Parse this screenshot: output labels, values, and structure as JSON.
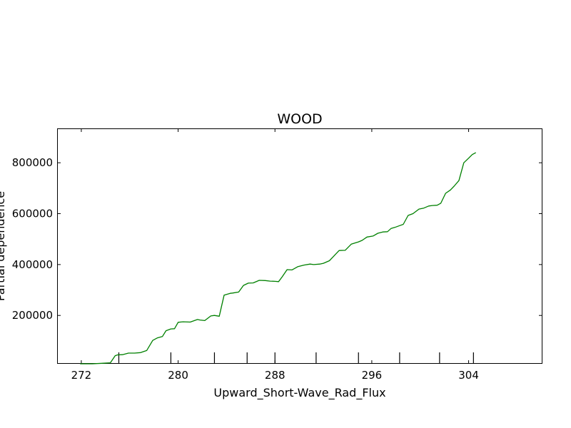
{
  "chart_data": {
    "type": "line",
    "title": "WOOD",
    "xlabel": "Upward_Short-Wave_Rad_Flux",
    "ylabel": "Partial dependence",
    "xlim": [
      270.0,
      310.1
    ],
    "ylim": [
      10000,
      935000
    ],
    "x_ticks": [
      272,
      280,
      288,
      296,
      304
    ],
    "x_tick_labels": [
      "272",
      "280",
      "288",
      "296",
      "304"
    ],
    "y_ticks": [
      200000,
      400000,
      600000,
      800000
    ],
    "y_tick_labels": [
      "200000",
      "400000",
      "600000",
      "800000"
    ],
    "rug": [
      275.1,
      279.4,
      283.0,
      285.7,
      288.0,
      291.4,
      294.9,
      298.3,
      301.6,
      304.4
    ],
    "grid": false,
    "line_color": "#008000",
    "series": [
      {
        "x": [
          271.9,
          272.9,
          273.7,
          274.4,
          274.8,
          275.0,
          275.4,
          275.9,
          276.4,
          276.9,
          277.4,
          277.9,
          278.3,
          278.7,
          279.0,
          279.4,
          279.7,
          280.0,
          280.4,
          281.0,
          281.6,
          281.8,
          282.2,
          282.7,
          283.0,
          283.4,
          283.8,
          284.3,
          284.5,
          285.0,
          285.4,
          285.8,
          286.2,
          286.7,
          287.2,
          287.6,
          288.0,
          288.3,
          288.6,
          289.0,
          289.4,
          289.9,
          290.4,
          290.9,
          291.2,
          291.7,
          292.0,
          292.5,
          292.8,
          293.3,
          293.8,
          294.3,
          294.9,
          295.2,
          295.6,
          296.1,
          296.5,
          296.9,
          297.3,
          297.6,
          297.9,
          298.3,
          298.6,
          299.0,
          299.4,
          299.9,
          300.3,
          300.7,
          301.0,
          301.4,
          301.7,
          302.1,
          302.5,
          302.8,
          303.2,
          303.6,
          304.0,
          304.3,
          304.6
        ],
        "y": [
          10000,
          10000,
          12000,
          14000,
          42000,
          45000,
          46000,
          52000,
          52000,
          54000,
          62000,
          102000,
          112000,
          117000,
          140000,
          147000,
          148000,
          173000,
          175000,
          174000,
          184000,
          182000,
          180000,
          198000,
          200000,
          197000,
          280000,
          287000,
          288000,
          292000,
          318000,
          327000,
          328000,
          338000,
          337000,
          335000,
          334000,
          333000,
          352000,
          380000,
          379000,
          392000,
          398000,
          402000,
          400000,
          402000,
          405000,
          415000,
          430000,
          455000,
          456000,
          480000,
          489000,
          495000,
          508000,
          512000,
          523000,
          528000,
          529000,
          542000,
          546000,
          553000,
          558000,
          593000,
          600000,
          618000,
          622000,
          630000,
          632000,
          633000,
          641000,
          680000,
          693000,
          708000,
          730000,
          800000,
          818000,
          832000,
          840000
        ]
      }
    ]
  }
}
